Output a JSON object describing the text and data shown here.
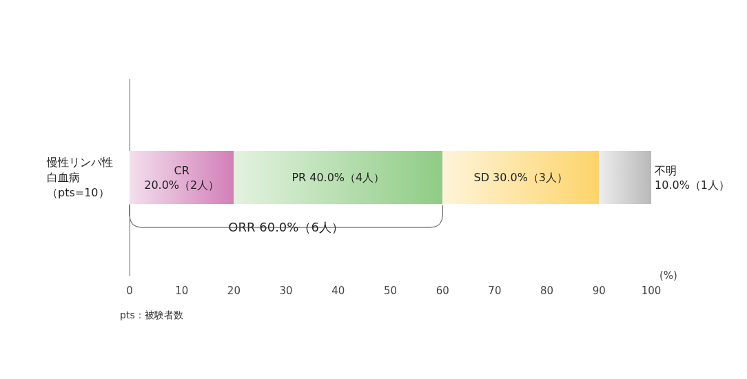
{
  "chart_data": {
    "type": "bar",
    "orientation": "horizontal",
    "stacked": true,
    "categories": [
      "慢性リンパ性白血病（pts=10）"
    ],
    "series": [
      {
        "color": "#d27fb8",
        "values": [
          20
        ],
        "value_labels": [
          "CR\n20.0%（2人）"
        ]
      },
      {
        "color": "#8fcc85",
        "values": [
          40
        ],
        "value_labels": [
          "PR 40.0%（4人）"
        ]
      },
      {
        "color": "#fdd46a",
        "values": [
          30
        ],
        "value_labels": [
          "SD 30.0%（3人）"
        ]
      },
      {
        "color": "#b9b9b9",
        "values": [
          10
        ],
        "value_labels": [
          "不明\n10.0%（1人）"
        ]
      }
    ],
    "xlim": [
      0,
      100
    ],
    "xticks": [
      0,
      10,
      20,
      30,
      40,
      50,
      60,
      70,
      80,
      90,
      100
    ],
    "xlabel": "(%)",
    "annotations": [
      "ORR 60.0%（6人）",
      "pts：被験者数"
    ],
    "grid": false
  }
}
